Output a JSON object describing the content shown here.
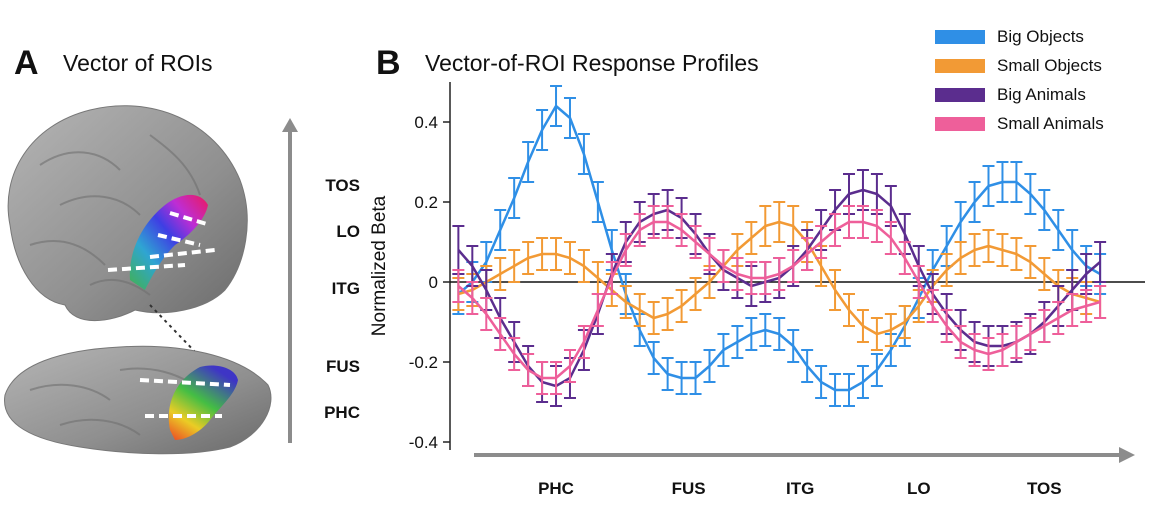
{
  "panel_a": {
    "letter": "A",
    "title": "Vector of ROIs",
    "roi_labels": [
      "TOS",
      "LO",
      "ITG",
      "FUS",
      "PHC"
    ]
  },
  "panel_b": {
    "letter": "B",
    "title": "Vector-of-ROI Response Profiles"
  },
  "colors": {
    "big_objects": "#2f8fe6",
    "small_objects": "#f29a35",
    "big_animals": "#5b2d8e",
    "small_animals": "#ee5f9a",
    "axis_gray": "#8c8c8c"
  },
  "chart_data": {
    "type": "line",
    "ylabel": "Normalized Beta",
    "ylim": [
      -0.42,
      0.5
    ],
    "yticks": [
      0.4,
      0.2,
      0,
      -0.2,
      -0.4
    ],
    "ytick_labels": [
      "0.4",
      "0.2",
      "0",
      "-0.2",
      "-0.4"
    ],
    "x": [
      1,
      2,
      3,
      4,
      5,
      6,
      7,
      8,
      9,
      10,
      11,
      12,
      13,
      14,
      15,
      16,
      17,
      18,
      19,
      20,
      21,
      22,
      23,
      24,
      25,
      26,
      27,
      28,
      29,
      30,
      31,
      32,
      33,
      34,
      35,
      36,
      37,
      38,
      39,
      40,
      41,
      42,
      43,
      44,
      45,
      46,
      47
    ],
    "xlim": [
      0.4,
      49.5
    ],
    "x_categories": [
      {
        "label": "PHC",
        "x": 8
      },
      {
        "label": "FUS",
        "x": 17.5
      },
      {
        "label": "ITG",
        "x": 25.5
      },
      {
        "label": "LO",
        "x": 34
      },
      {
        "label": "TOS",
        "x": 43
      }
    ],
    "legend_position": "top-right",
    "series": [
      {
        "name": "Big Objects",
        "values": [
          -0.03,
          0.0,
          0.05,
          0.13,
          0.21,
          0.3,
          0.38,
          0.44,
          0.41,
          0.32,
          0.2,
          0.08,
          -0.03,
          -0.12,
          -0.19,
          -0.23,
          -0.24,
          -0.24,
          -0.21,
          -0.17,
          -0.15,
          -0.13,
          -0.12,
          -0.13,
          -0.16,
          -0.21,
          -0.25,
          -0.27,
          -0.27,
          -0.25,
          -0.22,
          -0.17,
          -0.11,
          -0.04,
          0.03,
          0.09,
          0.15,
          0.2,
          0.24,
          0.25,
          0.25,
          0.22,
          0.18,
          0.13,
          0.08,
          0.04,
          0.02
        ],
        "error": [
          0.05,
          0.05,
          0.05,
          0.05,
          0.05,
          0.05,
          0.05,
          0.05,
          0.05,
          0.05,
          0.05,
          0.05,
          0.05,
          0.04,
          0.04,
          0.04,
          0.04,
          0.04,
          0.04,
          0.04,
          0.04,
          0.04,
          0.04,
          0.04,
          0.04,
          0.04,
          0.04,
          0.04,
          0.04,
          0.04,
          0.04,
          0.04,
          0.05,
          0.05,
          0.05,
          0.05,
          0.05,
          0.05,
          0.05,
          0.05,
          0.05,
          0.05,
          0.05,
          0.05,
          0.05,
          0.05,
          0.05
        ]
      },
      {
        "name": "Small Objects",
        "values": [
          -0.03,
          -0.02,
          0.0,
          0.02,
          0.04,
          0.06,
          0.07,
          0.07,
          0.06,
          0.04,
          0.01,
          -0.02,
          -0.05,
          -0.07,
          -0.09,
          -0.08,
          -0.06,
          -0.03,
          0.0,
          0.04,
          0.08,
          0.11,
          0.14,
          0.15,
          0.14,
          0.1,
          0.04,
          -0.02,
          -0.07,
          -0.11,
          -0.13,
          -0.12,
          -0.1,
          -0.06,
          -0.01,
          0.03,
          0.06,
          0.08,
          0.09,
          0.08,
          0.07,
          0.05,
          0.02,
          -0.01,
          -0.03,
          -0.04,
          -0.05
        ],
        "error": [
          0.04,
          0.04,
          0.04,
          0.04,
          0.04,
          0.04,
          0.04,
          0.04,
          0.04,
          0.04,
          0.04,
          0.04,
          0.04,
          0.04,
          0.04,
          0.04,
          0.04,
          0.04,
          0.04,
          0.04,
          0.04,
          0.04,
          0.05,
          0.05,
          0.05,
          0.05,
          0.05,
          0.05,
          0.04,
          0.04,
          0.04,
          0.04,
          0.04,
          0.04,
          0.04,
          0.04,
          0.04,
          0.04,
          0.04,
          0.04,
          0.04,
          0.04,
          0.04,
          0.04,
          0.04,
          0.04,
          0.04
        ]
      },
      {
        "name": "Big Animals",
        "values": [
          0.08,
          0.04,
          -0.02,
          -0.09,
          -0.15,
          -0.21,
          -0.25,
          -0.26,
          -0.24,
          -0.17,
          -0.08,
          0.02,
          0.1,
          0.15,
          0.17,
          0.18,
          0.16,
          0.12,
          0.07,
          0.03,
          0.01,
          -0.01,
          0.0,
          0.01,
          0.04,
          0.08,
          0.13,
          0.18,
          0.22,
          0.23,
          0.22,
          0.19,
          0.12,
          0.04,
          -0.03,
          -0.08,
          -0.12,
          -0.15,
          -0.16,
          -0.16,
          -0.15,
          -0.13,
          -0.1,
          -0.06,
          -0.02,
          0.02,
          0.05
        ],
        "error": [
          0.06,
          0.05,
          0.05,
          0.05,
          0.05,
          0.05,
          0.05,
          0.05,
          0.05,
          0.05,
          0.05,
          0.05,
          0.05,
          0.05,
          0.05,
          0.05,
          0.05,
          0.05,
          0.05,
          0.05,
          0.05,
          0.05,
          0.05,
          0.05,
          0.05,
          0.05,
          0.05,
          0.05,
          0.05,
          0.05,
          0.05,
          0.05,
          0.05,
          0.05,
          0.05,
          0.05,
          0.05,
          0.05,
          0.05,
          0.05,
          0.05,
          0.05,
          0.05,
          0.05,
          0.05,
          0.05,
          0.05
        ]
      },
      {
        "name": "Small Animals",
        "values": [
          -0.01,
          -0.04,
          -0.08,
          -0.13,
          -0.18,
          -0.22,
          -0.24,
          -0.24,
          -0.21,
          -0.15,
          -0.07,
          0.01,
          0.08,
          0.13,
          0.15,
          0.15,
          0.13,
          0.1,
          0.07,
          0.04,
          0.02,
          0.01,
          0.01,
          0.02,
          0.04,
          0.07,
          0.1,
          0.13,
          0.15,
          0.15,
          0.14,
          0.11,
          0.06,
          0.0,
          -0.06,
          -0.11,
          -0.15,
          -0.17,
          -0.18,
          -0.17,
          -0.15,
          -0.13,
          -0.11,
          -0.09,
          -0.07,
          -0.06,
          -0.05
        ],
        "error": [
          0.04,
          0.04,
          0.04,
          0.04,
          0.04,
          0.04,
          0.04,
          0.04,
          0.04,
          0.04,
          0.04,
          0.04,
          0.04,
          0.04,
          0.04,
          0.04,
          0.04,
          0.04,
          0.04,
          0.04,
          0.04,
          0.04,
          0.04,
          0.04,
          0.04,
          0.04,
          0.04,
          0.04,
          0.04,
          0.04,
          0.04,
          0.04,
          0.04,
          0.04,
          0.04,
          0.04,
          0.04,
          0.04,
          0.04,
          0.04,
          0.04,
          0.04,
          0.04,
          0.04,
          0.04,
          0.04,
          0.04
        ]
      }
    ]
  }
}
